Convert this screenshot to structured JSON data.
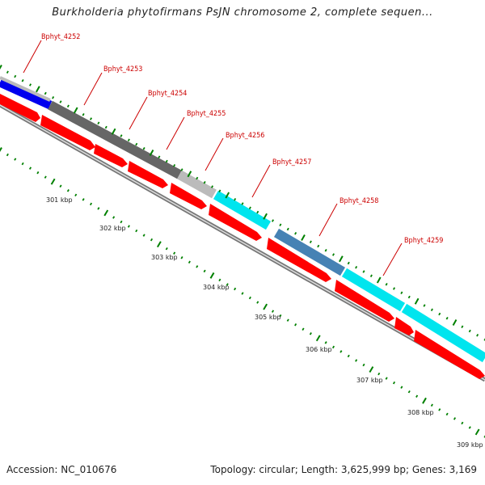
{
  "title": "Burkholderia phytofirmans PsJN chromosome 2, complete sequen...",
  "footer": {
    "accession": "Accession: NC_010676",
    "summary": "Topology: circular; Length: 3,625,999 bp; Genes: 3,169"
  },
  "genes": [
    {
      "label": "Bphyt_4252",
      "color": "#0000ee"
    },
    {
      "label": "Bphyt_4253",
      "color": "#666666"
    },
    {
      "label": "Bphyt_4254",
      "color": "#555555"
    },
    {
      "label": "Bphyt_4255",
      "color": "#bbbbbb"
    },
    {
      "label": "Bphyt_4256",
      "color": "#00e5ee"
    },
    {
      "label": "Bphyt_4257",
      "color": "#00e5ee"
    },
    {
      "label": "Bphyt_4258",
      "color": "#4682b4"
    },
    {
      "label": "Bphyt_4259",
      "color": "#00e5ee"
    }
  ],
  "kbp_ticks": [
    "301 kbp",
    "302 kbp",
    "303 kbp",
    "304 kbp",
    "305 kbp",
    "306 kbp",
    "307 kbp",
    "308 kbp",
    "309 kbp"
  ],
  "colors": {
    "cds": "#ff0000",
    "backbone": "#888888",
    "tick": "#008000",
    "label": "#cc0000"
  }
}
